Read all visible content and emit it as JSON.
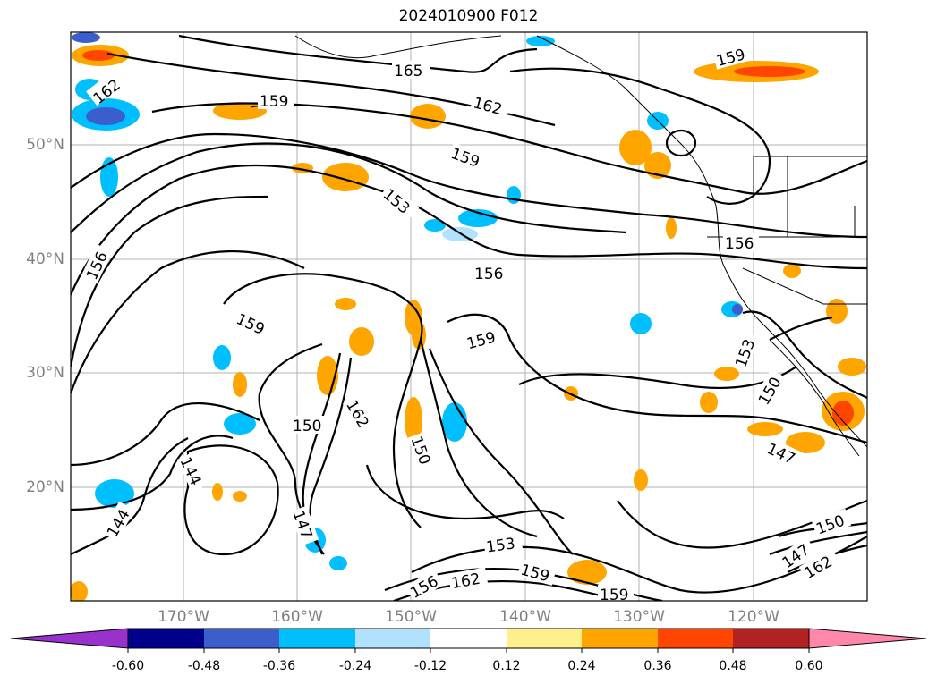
{
  "title": "2024010900 F012",
  "lat_labels": [
    "50°N",
    "40°N",
    "30°N",
    "20°N"
  ],
  "lon_labels": [
    "170°W",
    "160°W",
    "150°W",
    "140°W",
    "130°W",
    "120°W"
  ],
  "contour_labels": [
    "165",
    "162",
    "162",
    "159",
    "159",
    "159",
    "159",
    "159",
    "159",
    "159",
    "156",
    "156",
    "156",
    "156",
    "153",
    "153",
    "153",
    "150",
    "150",
    "150",
    "150",
    "147",
    "147",
    "147",
    "144",
    "144",
    "162",
    "162",
    "162"
  ],
  "colorbar": {
    "ticks": [
      "-0.60",
      "-0.48",
      "-0.36",
      "-0.24",
      "-0.12",
      "0.12",
      "0.24",
      "0.36",
      "0.48",
      "0.60"
    ],
    "colors": [
      "#9932cc",
      "#00008b",
      "#3a5fcd",
      "#00bfff",
      "#b0e2ff",
      "#ffffff",
      "#fff08c",
      "#ffa500",
      "#ff4500",
      "#b22222",
      "#ff88aa"
    ]
  }
}
